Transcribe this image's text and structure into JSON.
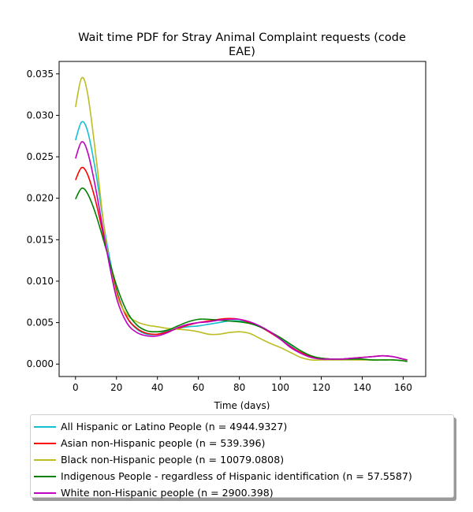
{
  "chart_data": {
    "type": "line",
    "title_line1": "Wait time PDF for Stray Animal Complaint  requests (code",
    "title_line2": "EAE)",
    "xlabel": "Time (days)",
    "ylabel": "",
    "xlim": [
      -8,
      171
    ],
    "ylim": [
      -0.0015,
      0.0365
    ],
    "xticks": [
      0,
      20,
      40,
      60,
      80,
      100,
      120,
      140,
      160
    ],
    "yticks": [
      0.0,
      0.005,
      0.01,
      0.015,
      0.02,
      0.025,
      0.03,
      0.035
    ],
    "ytick_labels": [
      "0.000",
      "0.005",
      "0.010",
      "0.015",
      "0.020",
      "0.025",
      "0.030",
      "0.035"
    ],
    "grid": false,
    "legend_position": "below",
    "series": [
      {
        "name": "All Hispanic or Latino People (n = 4944.9327)",
        "color": "#17becf",
        "x": [
          0,
          3,
          6,
          10,
          15,
          20,
          25,
          30,
          35,
          40,
          45,
          50,
          55,
          60,
          65,
          70,
          75,
          80,
          85,
          90,
          95,
          100,
          105,
          110,
          115,
          120,
          125,
          130,
          135,
          140,
          145,
          150,
          155,
          160,
          162
        ],
        "y": [
          0.027,
          0.0292,
          0.028,
          0.023,
          0.015,
          0.009,
          0.0057,
          0.0042,
          0.0036,
          0.0036,
          0.004,
          0.0043,
          0.0045,
          0.0046,
          0.0048,
          0.005,
          0.0052,
          0.0052,
          0.005,
          0.0045,
          0.0039,
          0.0031,
          0.0022,
          0.0014,
          0.0009,
          0.0007,
          0.0006,
          0.0006,
          0.0007,
          0.0008,
          0.0009,
          0.001,
          0.0009,
          0.0006,
          0.0005
        ]
      },
      {
        "name": "Asian non-Hispanic people (n = 539.396)",
        "color": "#ff0000",
        "x": [
          0,
          3,
          6,
          10,
          15,
          20,
          25,
          30,
          35,
          40,
          45,
          50,
          55,
          60,
          65,
          70,
          75,
          80,
          85,
          90,
          95,
          100,
          105,
          110,
          115,
          120,
          125,
          130,
          135,
          140,
          145,
          150,
          155,
          160,
          162
        ],
        "y": [
          0.0222,
          0.0237,
          0.0228,
          0.0195,
          0.014,
          0.0088,
          0.0057,
          0.0043,
          0.0037,
          0.0036,
          0.0039,
          0.0043,
          0.0047,
          0.005,
          0.0052,
          0.0054,
          0.0055,
          0.0054,
          0.005,
          0.0045,
          0.0038,
          0.003,
          0.0021,
          0.0014,
          0.0009,
          0.0007,
          0.0006,
          0.0006,
          0.0007,
          0.0008,
          0.0009,
          0.001,
          0.0009,
          0.0006,
          0.0005
        ]
      },
      {
        "name": "Black non-Hispanic people (n = 10079.0808)",
        "color": "#bcbd22",
        "x": [
          0,
          3,
          6,
          10,
          15,
          20,
          25,
          30,
          35,
          40,
          45,
          50,
          55,
          60,
          65,
          70,
          75,
          80,
          85,
          90,
          95,
          100,
          105,
          110,
          115,
          120,
          125,
          130,
          135,
          140,
          145,
          150,
          155,
          160,
          162
        ],
        "y": [
          0.031,
          0.0345,
          0.0325,
          0.025,
          0.0145,
          0.0085,
          0.006,
          0.0051,
          0.0047,
          0.0045,
          0.0043,
          0.0042,
          0.0041,
          0.0039,
          0.0036,
          0.0036,
          0.0038,
          0.0039,
          0.0037,
          0.0031,
          0.0025,
          0.002,
          0.0014,
          0.0008,
          0.0005,
          0.0005,
          0.0005,
          0.0005,
          0.0005,
          0.0005,
          0.0005,
          0.0005,
          0.0005,
          0.0004,
          0.0004
        ]
      },
      {
        "name": "Indigenous People - regardless of Hispanic identification (n = 57.5587)",
        "color": "#008000",
        "x": [
          0,
          3,
          6,
          10,
          15,
          20,
          25,
          30,
          35,
          40,
          45,
          50,
          55,
          60,
          65,
          70,
          75,
          80,
          85,
          90,
          95,
          100,
          105,
          110,
          115,
          120,
          125,
          130,
          135,
          140,
          145,
          150,
          155,
          160,
          162
        ],
        "y": [
          0.0199,
          0.0212,
          0.0205,
          0.018,
          0.0138,
          0.0095,
          0.0064,
          0.0047,
          0.004,
          0.0039,
          0.0041,
          0.0046,
          0.0051,
          0.0054,
          0.0054,
          0.0053,
          0.0052,
          0.0051,
          0.0049,
          0.0045,
          0.0039,
          0.0032,
          0.0024,
          0.0016,
          0.001,
          0.0007,
          0.0006,
          0.0006,
          0.0006,
          0.0006,
          0.0005,
          0.0005,
          0.0005,
          0.0004,
          0.0003
        ]
      },
      {
        "name": "White non-Hispanic people (n = 2900.398)",
        "color": "#c000c0",
        "x": [
          0,
          3,
          6,
          10,
          15,
          20,
          25,
          30,
          35,
          40,
          45,
          50,
          55,
          60,
          65,
          70,
          75,
          80,
          85,
          90,
          95,
          100,
          105,
          110,
          115,
          120,
          125,
          130,
          135,
          140,
          145,
          150,
          155,
          160,
          162
        ],
        "y": [
          0.0248,
          0.0268,
          0.0255,
          0.021,
          0.014,
          0.008,
          0.005,
          0.0038,
          0.0034,
          0.0034,
          0.0038,
          0.0044,
          0.0048,
          0.005,
          0.0051,
          0.0053,
          0.0054,
          0.0054,
          0.0051,
          0.0046,
          0.0039,
          0.003,
          0.002,
          0.0013,
          0.0008,
          0.0006,
          0.0006,
          0.0006,
          0.0007,
          0.0008,
          0.0009,
          0.001,
          0.0009,
          0.0006,
          0.0005
        ]
      }
    ]
  }
}
